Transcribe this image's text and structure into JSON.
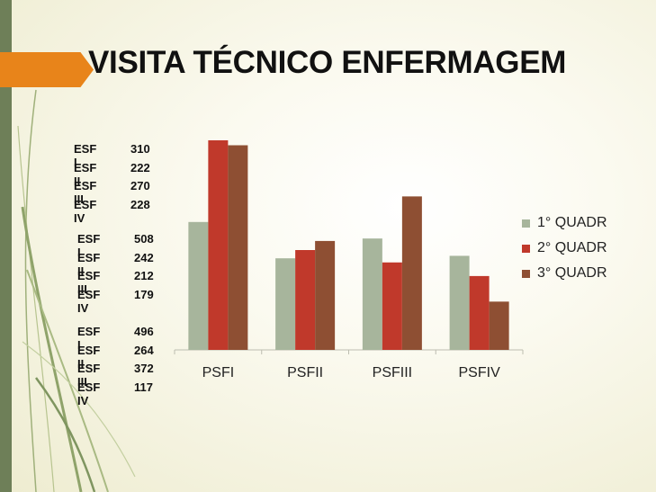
{
  "title": "VISITA TÉCNICO ENFERMAGEM",
  "notes": [
    [
      {
        "label": "ESF I",
        "value": "310"
      },
      {
        "label": "ESF II",
        "value": "222"
      },
      {
        "label": "ESF III",
        "value": "270"
      },
      {
        "label": "ESF IV",
        "value": "228"
      }
    ],
    [
      {
        "label": "ESF I",
        "value": "508"
      },
      {
        "label": "ESF II",
        "value": "242"
      },
      {
        "label": "ESF III",
        "value": "212"
      },
      {
        "label": "ESF IV",
        "value": "179"
      }
    ],
    [
      {
        "label": "ESF I",
        "value": "496"
      },
      {
        "label": "ESF II",
        "value": "264"
      },
      {
        "label": "ESF III",
        "value": "372"
      },
      {
        "label": "ESF IV",
        "value": "117"
      }
    ]
  ],
  "colors": {
    "accent_orange": "#e8841a",
    "side_bar": "#6e7f58"
  },
  "chart_data": {
    "type": "bar",
    "categories": [
      "PSFI",
      "PSFII",
      "PSFIII",
      "PSFIV"
    ],
    "series": [
      {
        "name": "1° QUADR",
        "values": [
          310,
          222,
          270,
          228
        ],
        "color": "#a7b59c"
      },
      {
        "name": "2° QUADR",
        "values": [
          508,
          242,
          212,
          179
        ],
        "color": "#c0392b"
      },
      {
        "name": "3° QUADR",
        "values": [
          496,
          264,
          372,
          117
        ],
        "color": "#8e4f33"
      }
    ],
    "ylim": [
      0,
      508
    ],
    "grid": false,
    "legend": "right"
  }
}
